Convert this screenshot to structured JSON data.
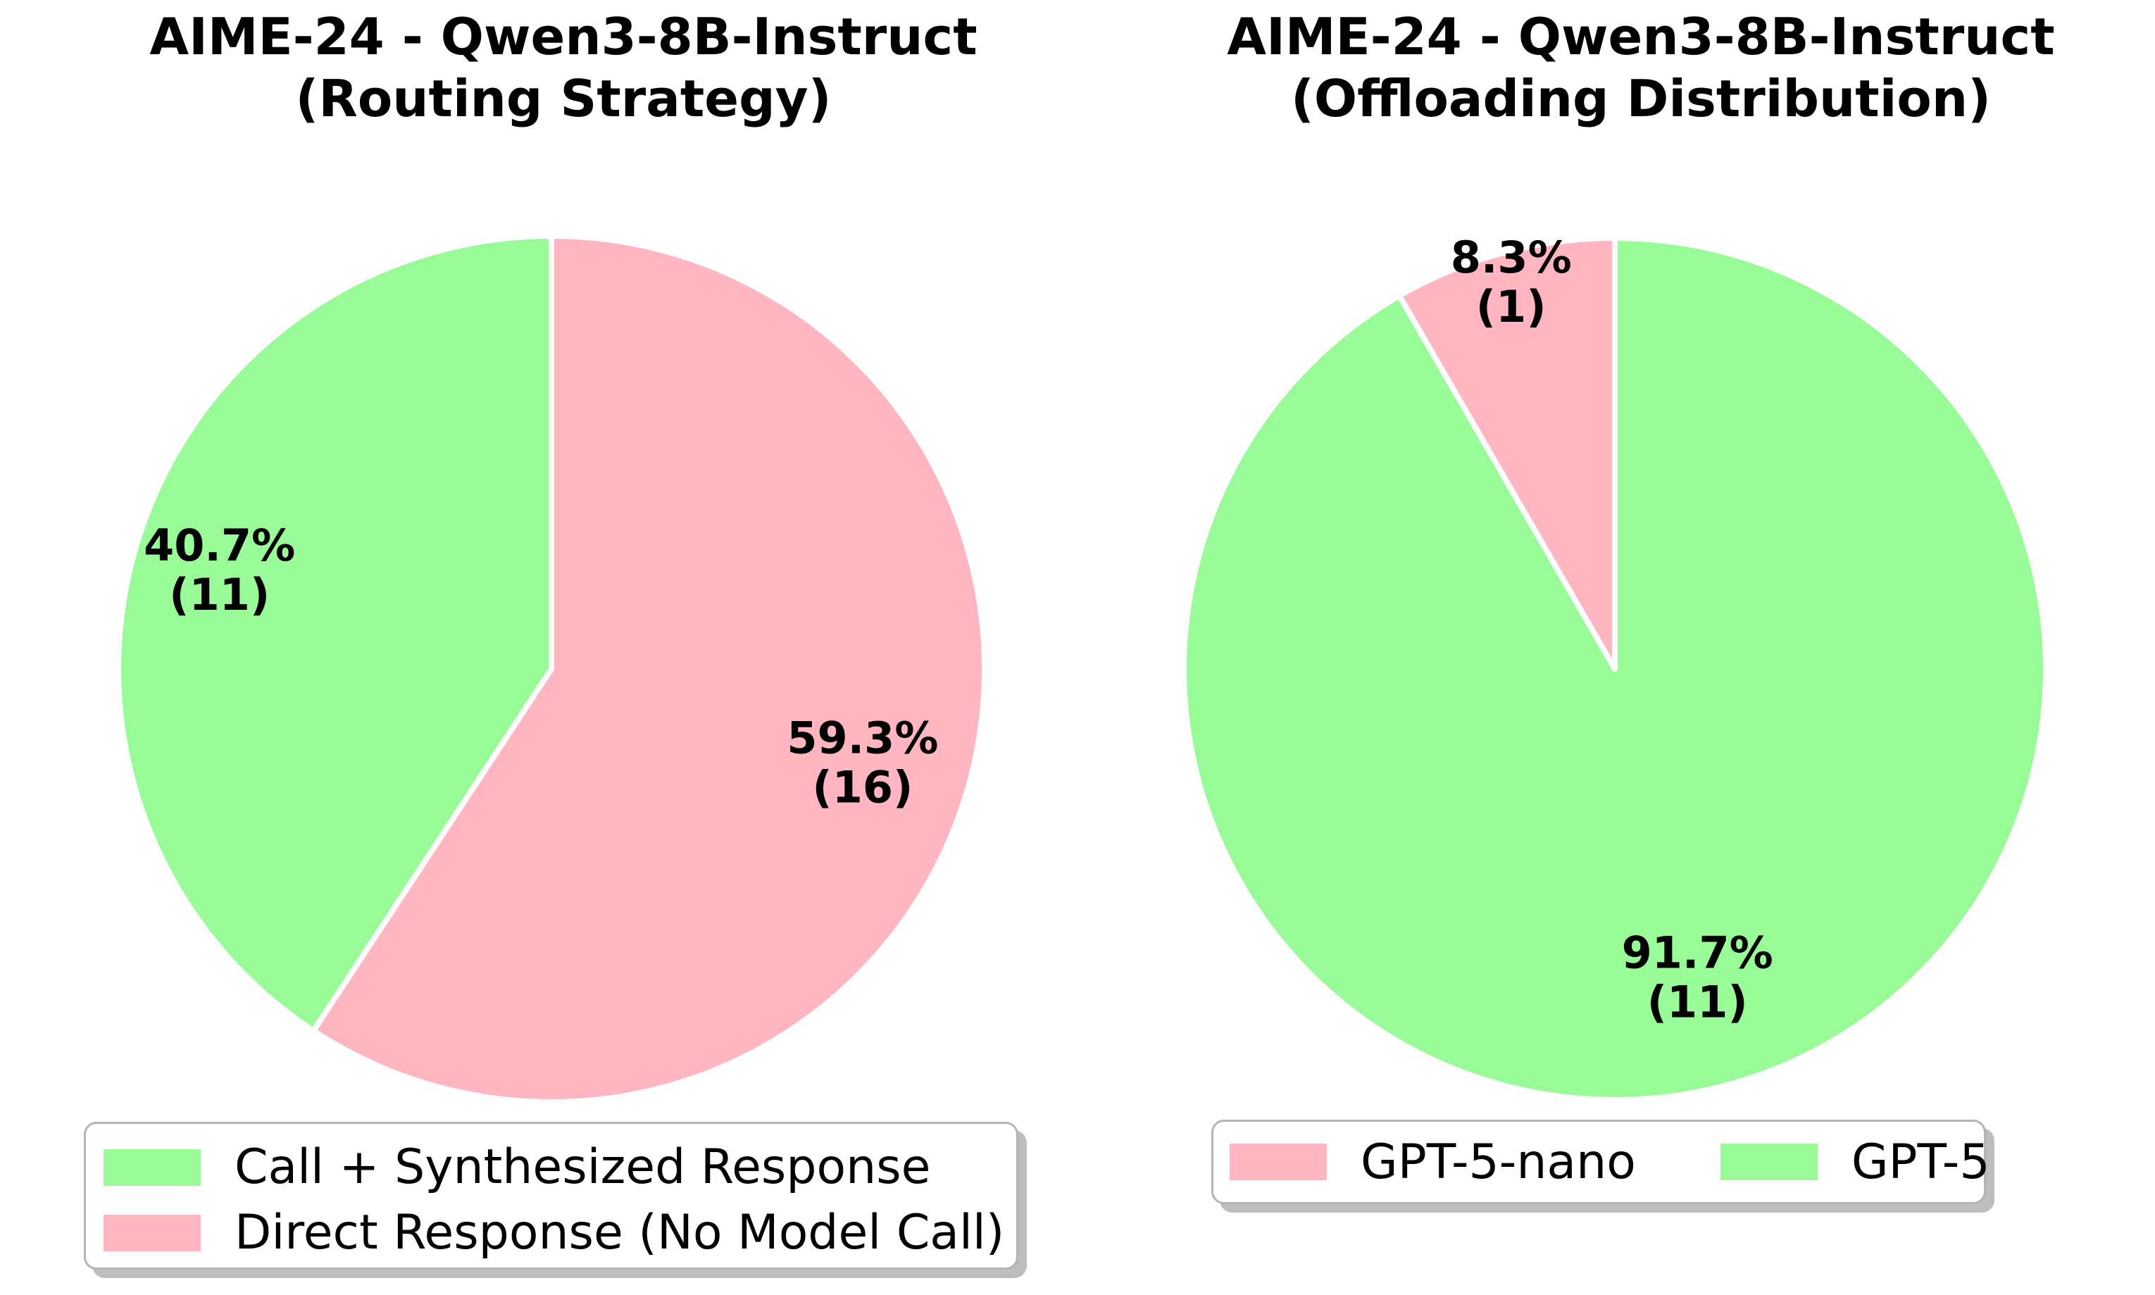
{
  "background_color": "#ffffff",
  "accent_colors": {
    "green": "#98FB98",
    "pink": "#FFB6C1",
    "legend_border": "#b4b4b4"
  },
  "chart_data": [
    {
      "type": "pie",
      "title": "AIME-24 - Qwen3-8B-Instruct (Routing Strategy)",
      "title_lines": [
        "AIME-24 - Qwen3-8B-Instruct",
        "(Routing Strategy)"
      ],
      "labels": [
        "Call + Synthesized Response",
        "Direct Response (No Model Call)"
      ],
      "values": [
        11,
        16
      ],
      "percentages": [
        40.7,
        59.3
      ],
      "percent_labels": [
        "40.7%",
        "59.3%"
      ],
      "count_labels": [
        "(11)",
        "(16)"
      ],
      "colors": [
        "#98FB98",
        "#FFB6C1"
      ],
      "startangle": 90,
      "counterclock": true,
      "legend_position": "below-left",
      "legend_labels": [
        "Call + Synthesized Response",
        "Direct Response (No Model Call)"
      ]
    },
    {
      "type": "pie",
      "title": "AIME-24 - Qwen3-8B-Instruct (Offloading Distribution)",
      "title_lines": [
        "AIME-24 - Qwen3-8B-Instruct",
        "(Offloading Distribution)"
      ],
      "labels": [
        "GPT-5-nano",
        "GPT-5"
      ],
      "values": [
        1,
        11
      ],
      "percentages": [
        8.3,
        91.7
      ],
      "percent_labels": [
        "8.3%",
        "91.7%"
      ],
      "count_labels": [
        "(1)",
        "(11)"
      ],
      "colors": [
        "#FFB6C1",
        "#98FB98"
      ],
      "startangle": 90,
      "counterclock": true,
      "legend_position": "below-right",
      "legend_labels": [
        "GPT-5-nano",
        "GPT-5"
      ]
    }
  ]
}
